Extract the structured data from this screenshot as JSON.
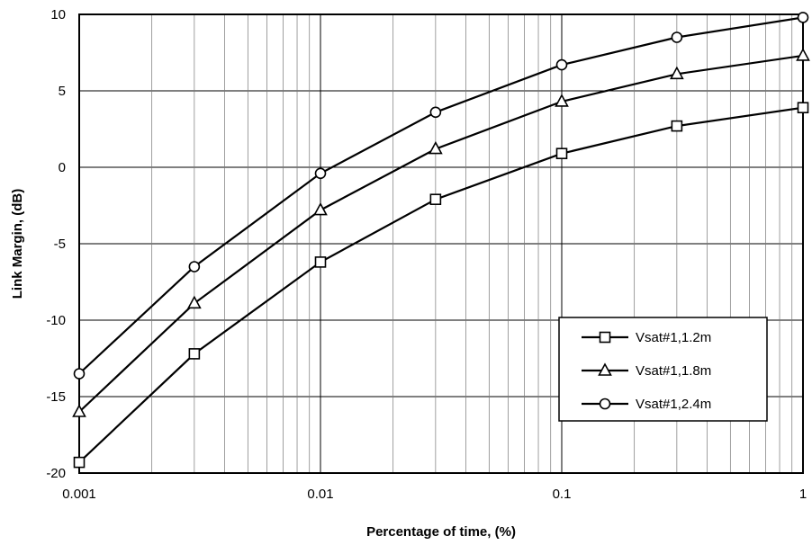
{
  "chart_data": {
    "type": "line",
    "title": "",
    "xlabel": "Percentage of time, (%)",
    "ylabel": "Link Margin, (dB)",
    "x_scale": "log",
    "xlim": [
      0.001,
      1
    ],
    "ylim": [
      -20,
      10
    ],
    "x_ticks": [
      0.001,
      0.01,
      0.1,
      1
    ],
    "x_tick_labels": [
      "0.001",
      "0.01",
      "0.1",
      "1"
    ],
    "y_ticks": [
      10,
      5,
      0,
      -5,
      -10,
      -15,
      -20
    ],
    "y_tick_labels": [
      "10",
      "5",
      "0",
      "-5",
      "-10",
      "-15",
      "-20"
    ],
    "grid": true,
    "legend_position": "lower-right",
    "x": [
      0.001,
      0.003,
      0.01,
      0.03,
      0.1,
      0.3,
      1
    ],
    "series": [
      {
        "name": "Vsat#1,1.2m",
        "marker": "square",
        "values": [
          -19.3,
          -12.2,
          -6.2,
          -2.1,
          0.9,
          2.7,
          3.9
        ]
      },
      {
        "name": "Vsat#1,1.8m",
        "marker": "triangle",
        "values": [
          -16.0,
          -8.9,
          -2.8,
          1.2,
          4.3,
          6.1,
          7.3
        ]
      },
      {
        "name": "Vsat#1,2.4m",
        "marker": "circle",
        "values": [
          -13.5,
          -6.5,
          -0.4,
          3.6,
          6.7,
          8.5,
          9.8
        ]
      }
    ]
  }
}
